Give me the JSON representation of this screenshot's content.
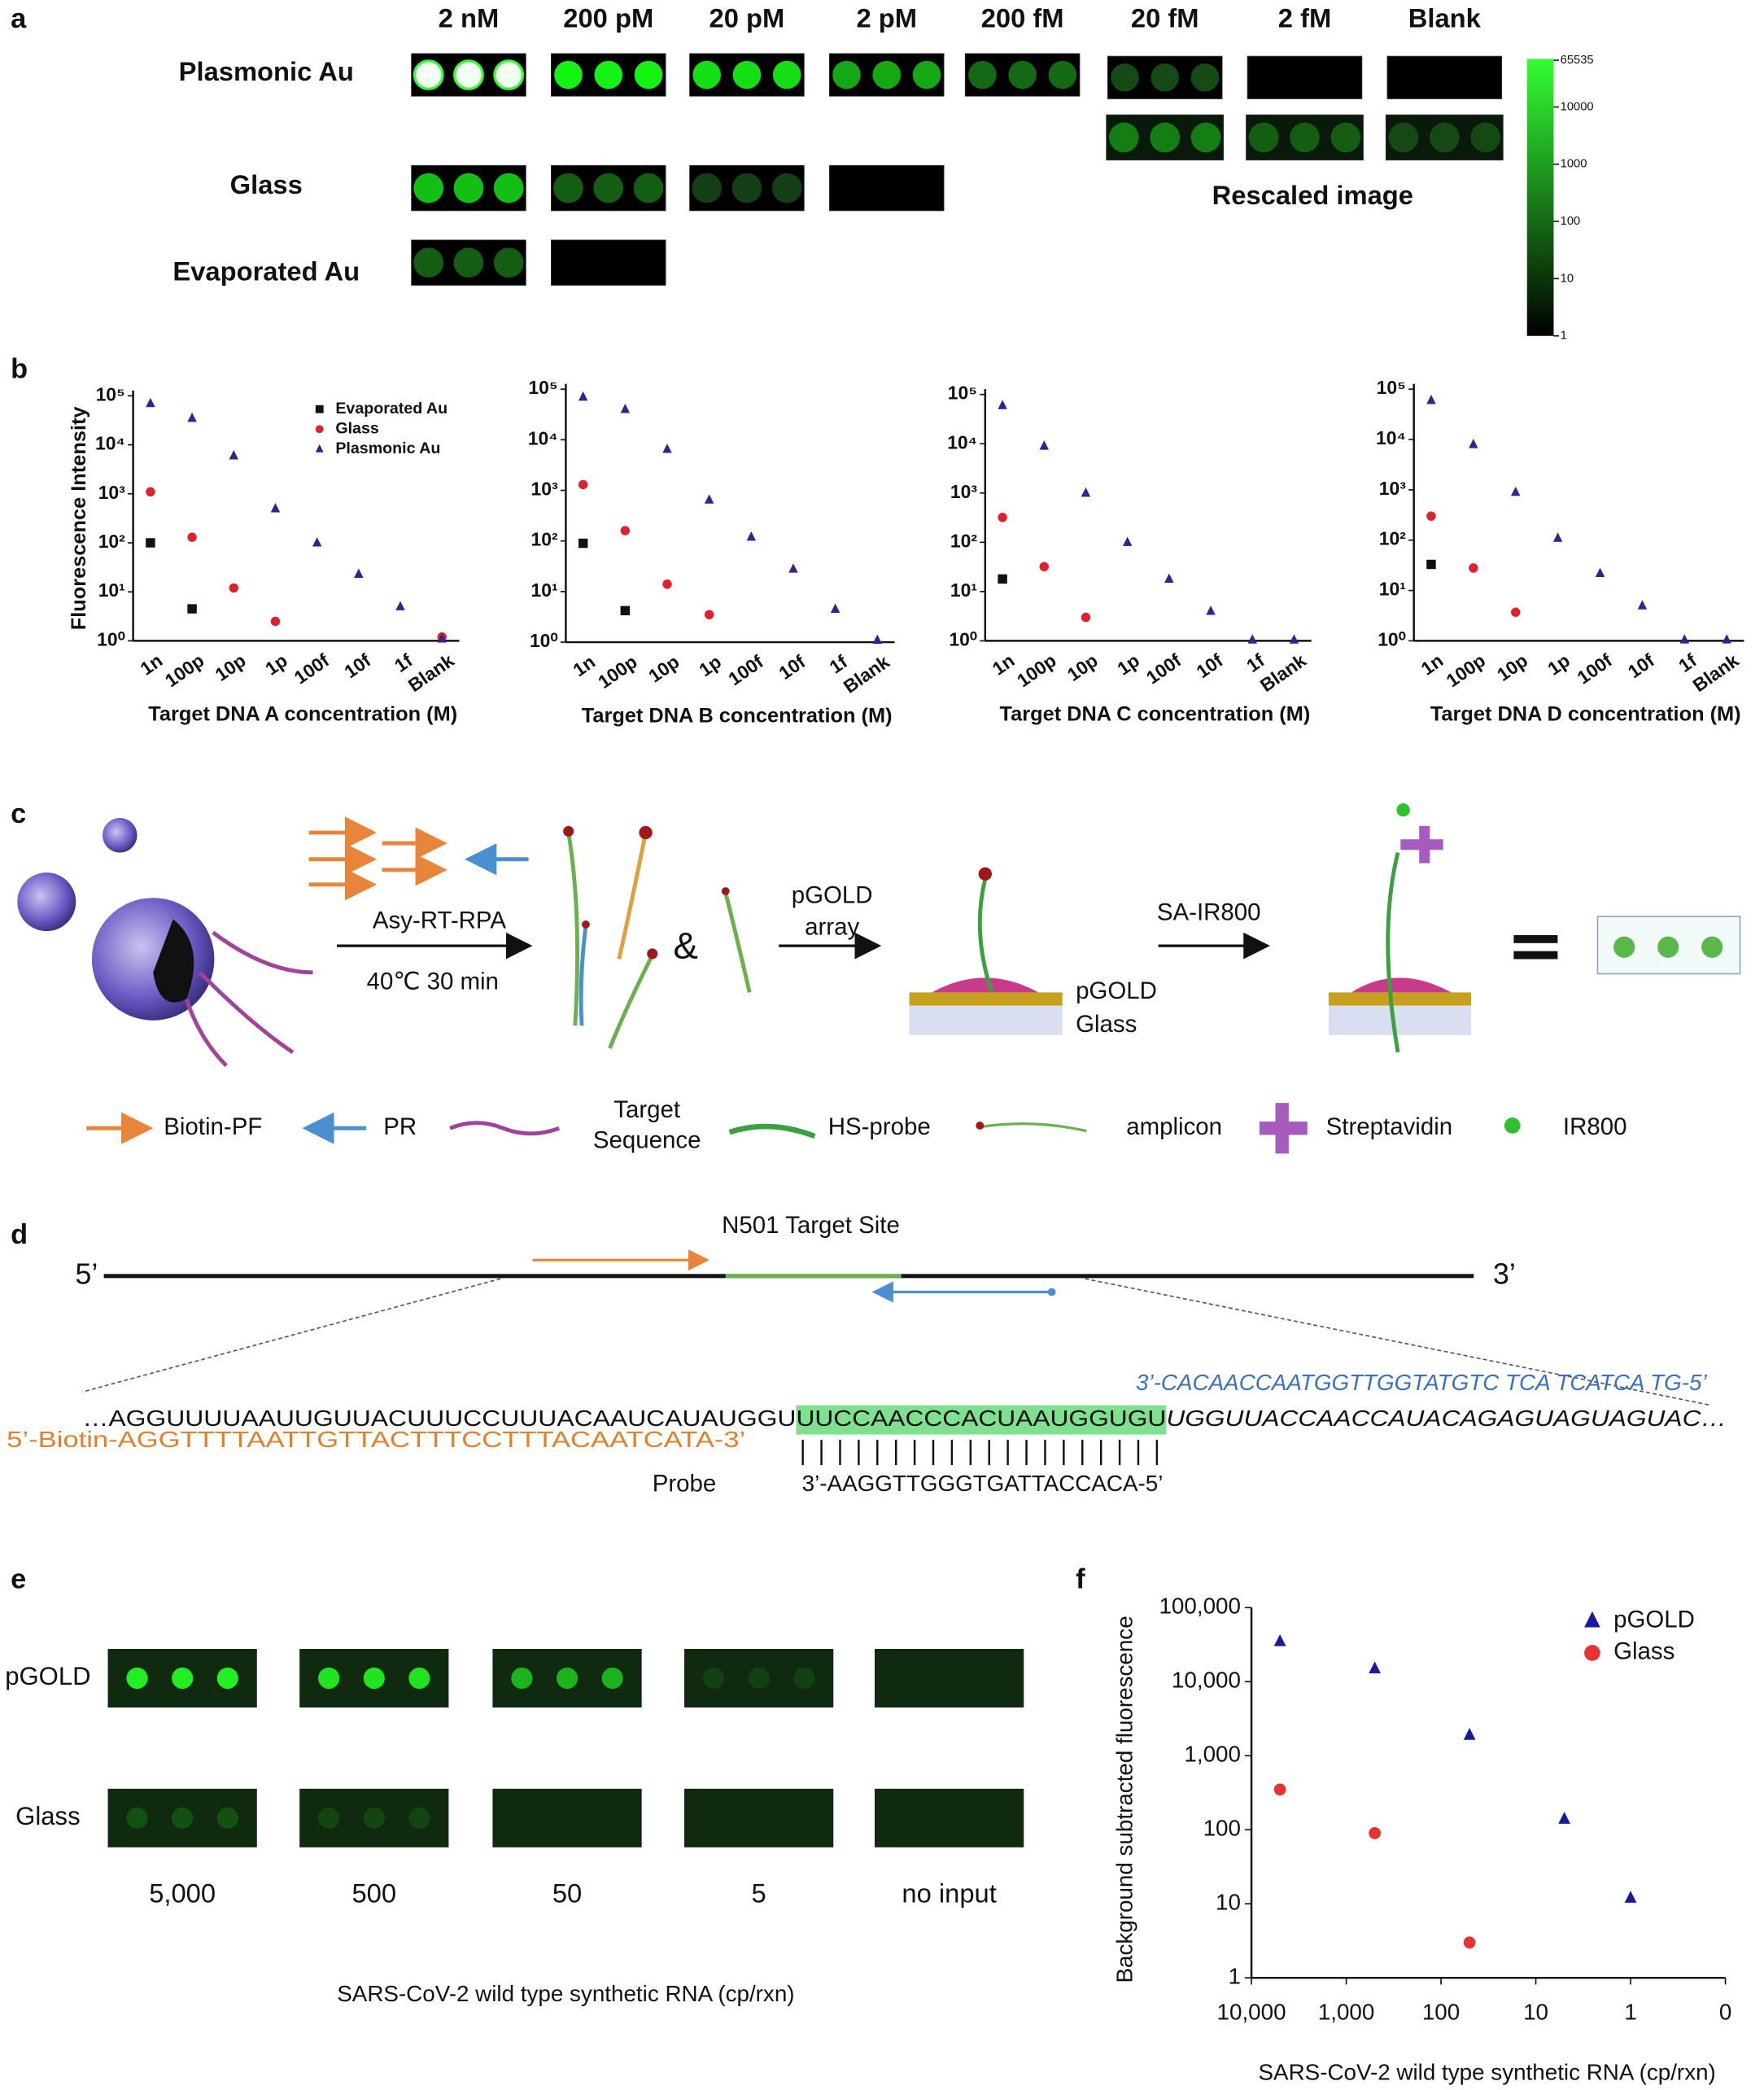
{
  "panel_labels": [
    "a",
    "b",
    "c",
    "d",
    "e",
    "f"
  ],
  "panel_a": {
    "columns": [
      "2 nM",
      "200 pM",
      "20 pM",
      "2 pM",
      "200 fM",
      "20 fM",
      "2 fM",
      "Blank"
    ],
    "rows": [
      "Plasmonic Au",
      "Glass",
      "Evaporated Au"
    ],
    "rescaled_label": "Rescaled image",
    "colorbar_ticks": [
      65535,
      10000,
      1000,
      100,
      10,
      1
    ]
  },
  "panel_c": {
    "step1": "Asy-RT-RPA",
    "step1_conditions": "40℃ 30 min",
    "ampersand": "&",
    "step2": [
      "pGOLD",
      "array"
    ],
    "step3": "SA-IR800",
    "surface": [
      "pGOLD",
      "Glass"
    ],
    "legend": [
      "Biotin-PF",
      "PR",
      [
        "Target",
        "Sequence"
      ],
      "HS-probe",
      "amplicon",
      "Streptavidin",
      "IR800"
    ]
  },
  "panel_d": {
    "title": "N501 Target Site",
    "five_prime": "5’",
    "three_prime": "3’",
    "reverse_primer": "3’-CACAACCAATGGTTGGTATGTC TCA TCATCA TG-5’",
    "template": [
      "…AGGUUUUAAUUGUUACUUUCCUUUACAAUCAUAUGGU",
      "UUCCAACCCACUAAUGGUGU",
      "UGGUUACCAACCAUACAGAGUAGUAGUAC…"
    ],
    "forward_primer": "5’-Biotin-AGGTTTTAATTGTTACTTTCCTTTACAATCATA-3’",
    "probe_label": "Probe",
    "probe": "3’-AAGGTTGGGTGATTACCACA-5’"
  },
  "panel_e": {
    "rows": [
      "pGOLD",
      "Glass"
    ],
    "columns": [
      "5,000",
      "500",
      "50",
      "5",
      "no input"
    ],
    "xlabel": "SARS-CoV-2 wild type synthetic RNA (cp/rxn)"
  },
  "chart_data": [
    {
      "type": "scatter",
      "ylog": true,
      "xlabel": "Target DNA A concentration (M)",
      "ylabel": "Fluorescence Intensity",
      "legend": "upper right",
      "categories": [
        "1n",
        "100p",
        "10p",
        "1p",
        "100f",
        "10f",
        "1f",
        "Blank"
      ],
      "ylim": [
        1,
        100000
      ],
      "yticks": [
        {
          "value": 1,
          "label": "10⁰"
        },
        {
          "value": 10,
          "label": "10¹"
        },
        {
          "value": 100,
          "label": "10²"
        },
        {
          "value": 1000,
          "label": "10³"
        },
        {
          "value": 10000,
          "label": "10⁴"
        },
        {
          "value": 100000,
          "label": "10⁵"
        }
      ],
      "series": [
        {
          "name": "Evaporated Au",
          "color": "#111111",
          "marker": "square",
          "values": [
            100,
            4.5,
            null,
            null,
            null,
            null,
            null,
            null
          ]
        },
        {
          "name": "Glass",
          "color": "#e0202e",
          "marker": "circle",
          "values": [
            1100,
            130,
            12,
            2.5,
            null,
            null,
            null,
            1.2
          ]
        },
        {
          "name": "Plasmonic Au",
          "color": "#3a1f8f",
          "marker": "triangle",
          "values": [
            70000,
            35000,
            6000,
            500,
            100,
            23,
            5,
            1.1
          ]
        }
      ]
    },
    {
      "type": "scatter",
      "ylog": true,
      "xlabel": "Target DNA B concentration (M)",
      "categories": [
        "1n",
        "100p",
        "10p",
        "1p",
        "100f",
        "10f",
        "1f",
        "Blank"
      ],
      "ylim": [
        1,
        100000
      ],
      "yticks": [
        {
          "value": 1,
          "label": "10⁰"
        },
        {
          "value": 10,
          "label": "10¹"
        },
        {
          "value": 100,
          "label": "10²"
        },
        {
          "value": 1000,
          "label": "10³"
        },
        {
          "value": 10000,
          "label": "10⁴"
        },
        {
          "value": 100000,
          "label": "10⁵"
        }
      ],
      "series": [
        {
          "color": "#111111",
          "marker": "square",
          "values": [
            90,
            4.2,
            null,
            null,
            null,
            null,
            null,
            null
          ]
        },
        {
          "color": "#e0202e",
          "marker": "circle",
          "values": [
            1300,
            160,
            14,
            3.5,
            null,
            null,
            null,
            null
          ]
        },
        {
          "color": "#3a1f8f",
          "marker": "triangle",
          "values": [
            70000,
            40000,
            6500,
            650,
            120,
            28,
            4.5,
            1.1
          ]
        }
      ]
    },
    {
      "type": "scatter",
      "ylog": true,
      "xlabel": "Target DNA C concentration (M)",
      "categories": [
        "1n",
        "100p",
        "10p",
        "1p",
        "100f",
        "10f",
        "1f",
        "Blank"
      ],
      "ylim": [
        1,
        100000
      ],
      "yticks": [
        {
          "value": 1,
          "label": "10⁰"
        },
        {
          "value": 10,
          "label": "10¹"
        },
        {
          "value": 100,
          "label": "10²"
        },
        {
          "value": 1000,
          "label": "10³"
        },
        {
          "value": 10000,
          "label": "10⁴"
        },
        {
          "value": 100000,
          "label": "10⁵"
        }
      ],
      "series": [
        {
          "color": "#111111",
          "marker": "square",
          "values": [
            18,
            null,
            null,
            null,
            null,
            null,
            null,
            null
          ]
        },
        {
          "color": "#e0202e",
          "marker": "circle",
          "values": [
            320,
            32,
            3,
            null,
            null,
            null,
            null,
            null
          ]
        },
        {
          "color": "#3a1f8f",
          "marker": "triangle",
          "values": [
            60000,
            9000,
            1000,
            100,
            18,
            4,
            1.05,
            1.05
          ]
        }
      ]
    },
    {
      "type": "scatter",
      "ylog": true,
      "xlabel": "Target DNA D concentration (M)",
      "categories": [
        "1n",
        "100p",
        "10p",
        "1p",
        "100f",
        "10f",
        "1f",
        "Blank"
      ],
      "ylim": [
        1,
        100000
      ],
      "yticks": [
        {
          "value": 1,
          "label": "10⁰"
        },
        {
          "value": 10,
          "label": "10¹"
        },
        {
          "value": 100,
          "label": "10²"
        },
        {
          "value": 1000,
          "label": "10³"
        },
        {
          "value": 10000,
          "label": "10⁴"
        },
        {
          "value": 100000,
          "label": "10⁵"
        }
      ],
      "series": [
        {
          "color": "#111111",
          "marker": "square",
          "values": [
            33,
            null,
            null,
            null,
            null,
            null,
            null,
            null
          ]
        },
        {
          "color": "#e0202e",
          "marker": "circle",
          "values": [
            300,
            28,
            3.7,
            null,
            null,
            null,
            null,
            null
          ]
        },
        {
          "color": "#3a1f8f",
          "marker": "triangle",
          "values": [
            60000,
            8000,
            900,
            110,
            22,
            5,
            1.05,
            1.05
          ]
        }
      ]
    },
    {
      "type": "xyscatter",
      "ylog": true,
      "xlog": true,
      "legend": "upper right",
      "xlabel": "SARS-CoV-2 wild type synthetic RNA (cp/rxn)",
      "ylabel": "Background subtracted fluorescence",
      "xlim": [
        10000,
        0.1
      ],
      "ylim": [
        1,
        100000
      ],
      "xticks": [
        {
          "value": 10000,
          "label": "10,000"
        },
        {
          "value": 1000,
          "label": "1,000"
        },
        100,
        10,
        1,
        {
          "value": 0.1,
          "label": "0"
        }
      ],
      "yticks": [
        1,
        10,
        100,
        {
          "value": 1000,
          "label": "1,000"
        },
        {
          "value": 10000,
          "label": "10,000"
        },
        {
          "value": 100000,
          "label": "100,000"
        }
      ],
      "series": [
        {
          "name": "pGOLD",
          "color": "#1a1a9c",
          "marker": "triangle",
          "x": [
            5000,
            500,
            50,
            5,
            1
          ],
          "values": [
            35000,
            15000,
            1900,
            140,
            12
          ]
        },
        {
          "name": "Glass",
          "color": "#e53232",
          "marker": "circle",
          "x": [
            5000,
            500,
            50
          ],
          "values": [
            350,
            90,
            3
          ]
        }
      ]
    }
  ]
}
